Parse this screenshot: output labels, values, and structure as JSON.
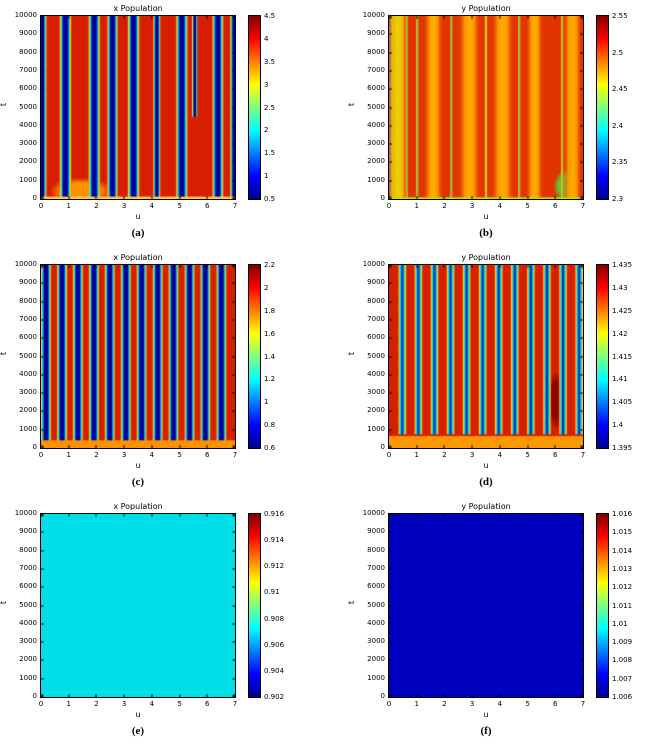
{
  "page": {
    "background": "#ffffff"
  },
  "palette": {
    "jet": {
      "stops": [
        "#00008f",
        "#0000ff",
        "#00ffff",
        "#ffff00",
        "#ff0000",
        "#800000"
      ],
      "positions": [
        0,
        0.125,
        0.375,
        0.625,
        0.875,
        1
      ]
    },
    "kinds": {
      "stripe": [
        [
          0,
          "bg"
        ],
        [
          0.12,
          "#ffdd00"
        ],
        [
          0.22,
          "#00ccff"
        ],
        [
          0.35,
          "#000099"
        ],
        [
          0.65,
          "#000099"
        ],
        [
          0.78,
          "#00ccff"
        ],
        [
          0.88,
          "#ffdd00"
        ],
        [
          1,
          "bg"
        ]
      ],
      "dstripe": [
        [
          0,
          "bg"
        ],
        [
          0.15,
          "#ffdd00"
        ],
        [
          0.3,
          "#00d8e0"
        ],
        [
          0.45,
          "#0033cc"
        ],
        [
          0.55,
          "#0033cc"
        ],
        [
          0.7,
          "#00d8e0"
        ],
        [
          0.85,
          "#ffdd00"
        ],
        [
          1,
          "bg"
        ]
      ],
      "oband": [
        [
          0,
          "bg"
        ],
        [
          0.3,
          "#ff9800"
        ],
        [
          0.5,
          "#ffae00"
        ],
        [
          0.7,
          "#ff9800"
        ],
        [
          1,
          "bg"
        ]
      ],
      "yband": [
        [
          0,
          "bg"
        ],
        [
          0.3,
          "#f5b800"
        ],
        [
          0.5,
          "#e8d400"
        ],
        [
          0.7,
          "#f5b800"
        ],
        [
          1,
          "bg"
        ]
      ],
      "cline": [
        [
          0,
          "bg"
        ],
        [
          0.35,
          "#ffd000"
        ],
        [
          0.5,
          "#00c8c0"
        ],
        [
          0.65,
          "#ffd000"
        ],
        [
          1,
          "bg"
        ]
      ]
    }
  },
  "chart_data": [
    {
      "id": "a",
      "type": "heatmap",
      "title": "x Population",
      "xlabel": "u",
      "ylabel": "t",
      "caption": "(a)",
      "x_range": [
        0,
        7
      ],
      "y_range": [
        0,
        10000
      ],
      "x_ticks": [
        "0",
        "1",
        "2",
        "3",
        "4",
        "5",
        "6",
        "7"
      ],
      "y_ticks": [
        "0",
        "1000",
        "2000",
        "3000",
        "4000",
        "5000",
        "6000",
        "7000",
        "8000",
        "9000",
        "10000"
      ],
      "colorbar_ticks": [
        "4.5",
        "4",
        "3.5",
        "3",
        "2.5",
        "2",
        "1.5",
        "1",
        "0.5"
      ],
      "heatmap": {
        "bg": "#d81e00",
        "bands": [
          {
            "kind": "stripe",
            "u": 0.03,
            "w": 0.4
          },
          {
            "kind": "stripe",
            "u": 0.88,
            "w": 0.48
          },
          {
            "kind": "stripe",
            "u": 1.92,
            "w": 0.48
          },
          {
            "kind": "stripe",
            "u": 2.58,
            "w": 0.44
          },
          {
            "kind": "stripe",
            "u": 3.34,
            "w": 0.48
          },
          {
            "kind": "stripe",
            "u": 4.18,
            "w": 0.3
          },
          {
            "kind": "stripe",
            "u": 5.08,
            "w": 0.48
          },
          {
            "kind": "stripe",
            "u": 5.55,
            "w": 0.22,
            "t0": 4500
          },
          {
            "kind": "stripe",
            "u": 6.38,
            "w": 0.46
          },
          {
            "kind": "stripe",
            "u": 6.98,
            "w": 0.36
          }
        ],
        "patches": [
          {
            "cu": 1.45,
            "ct": 420,
            "ru": 1.15,
            "rt": 750,
            "color": "#ff9100"
          }
        ],
        "bottom_band": {
          "t": 130,
          "color": "#ffc84a"
        }
      }
    },
    {
      "id": "b",
      "type": "heatmap",
      "title": "y Population",
      "xlabel": "u",
      "ylabel": "t",
      "caption": "(b)",
      "x_range": [
        0,
        7
      ],
      "y_range": [
        0,
        10000
      ],
      "x_ticks": [
        "0",
        "1",
        "2",
        "3",
        "4",
        "5",
        "6",
        "7"
      ],
      "y_ticks": [
        "0",
        "1000",
        "2000",
        "3000",
        "4000",
        "5000",
        "6000",
        "7000",
        "8000",
        "9000",
        "10000"
      ],
      "colorbar_ticks": [
        "2.55",
        "2.5",
        "2.45",
        "2.4",
        "2.35",
        "2.3"
      ],
      "heatmap": {
        "bg": "#e23400",
        "bands": [
          {
            "kind": "yband",
            "u": 0.32,
            "w": 0.85
          },
          {
            "kind": "oband",
            "u": 1.6,
            "w": 0.75
          },
          {
            "kind": "oband",
            "u": 2.9,
            "w": 0.85
          },
          {
            "kind": "oband",
            "u": 4.1,
            "w": 0.85
          },
          {
            "kind": "oband",
            "u": 5.25,
            "w": 0.65
          },
          {
            "kind": "oband",
            "u": 6.62,
            "w": 0.72
          },
          {
            "kind": "cline",
            "u": 0.1,
            "w": 0.14
          },
          {
            "kind": "cline",
            "u": 0.64,
            "w": 0.12
          },
          {
            "kind": "cline",
            "u": 1.02,
            "w": 0.14
          },
          {
            "kind": "cline",
            "u": 2.25,
            "w": 0.14
          },
          {
            "kind": "cline",
            "u": 3.5,
            "w": 0.14
          },
          {
            "kind": "cline",
            "u": 4.7,
            "w": 0.14
          },
          {
            "kind": "cline",
            "u": 6.25,
            "w": 0.14
          }
        ],
        "patches": [
          {
            "cu": 6.38,
            "ct": 700,
            "ru": 0.45,
            "rt": 900,
            "color": "#5fc832"
          }
        ],
        "bottom_band": {
          "t": 90,
          "color": "#c8e000"
        }
      }
    },
    {
      "id": "c",
      "type": "heatmap",
      "title": "x Population",
      "xlabel": "u",
      "ylabel": "t",
      "caption": "(c)",
      "x_range": [
        0,
        7
      ],
      "y_range": [
        0,
        10000
      ],
      "x_ticks": [
        "0",
        "1",
        "2",
        "3",
        "4",
        "5",
        "6",
        "7"
      ],
      "y_ticks": [
        "0",
        "1000",
        "2000",
        "3000",
        "4000",
        "5000",
        "6000",
        "7000",
        "8000",
        "9000",
        "10000"
      ],
      "colorbar_ticks": [
        "2.2",
        "2",
        "1.8",
        "1.6",
        "1.4",
        "1.2",
        "1",
        "0.8",
        "0.6"
      ],
      "heatmap": {
        "bg": "#d81e00",
        "bands": [
          {
            "kind": "stripe",
            "u": 0.18,
            "w": 0.42,
            "t0": 280
          },
          {
            "kind": "stripe",
            "u": 0.76,
            "w": 0.42,
            "t0": 280
          },
          {
            "kind": "stripe",
            "u": 1.33,
            "w": 0.42,
            "t0": 280
          },
          {
            "kind": "stripe",
            "u": 1.91,
            "w": 0.42,
            "t0": 280
          },
          {
            "kind": "stripe",
            "u": 2.48,
            "w": 0.42,
            "t0": 280
          },
          {
            "kind": "stripe",
            "u": 3.06,
            "w": 0.42,
            "t0": 280
          },
          {
            "kind": "stripe",
            "u": 3.63,
            "w": 0.42,
            "t0": 280
          },
          {
            "kind": "stripe",
            "u": 4.21,
            "w": 0.42,
            "t0": 280
          },
          {
            "kind": "stripe",
            "u": 4.78,
            "w": 0.42,
            "t0": 280
          },
          {
            "kind": "stripe",
            "u": 5.36,
            "w": 0.42,
            "t0": 280
          },
          {
            "kind": "stripe",
            "u": 5.93,
            "w": 0.42,
            "t0": 280
          },
          {
            "kind": "stripe",
            "u": 6.51,
            "w": 0.42,
            "t0": 280
          }
        ],
        "patches": [],
        "bottom_band": {
          "t": 420,
          "color": "#ff9100"
        }
      }
    },
    {
      "id": "d",
      "type": "heatmap",
      "title": "y Population",
      "xlabel": "u",
      "ylabel": "t",
      "caption": "(d)",
      "x_range": [
        0,
        7
      ],
      "y_range": [
        0,
        10000
      ],
      "x_ticks": [
        "0",
        "1",
        "2",
        "3",
        "4",
        "5",
        "6",
        "7"
      ],
      "y_ticks": [
        "0",
        "1000",
        "2000",
        "3000",
        "4000",
        "5000",
        "6000",
        "7000",
        "8000",
        "9000",
        "10000"
      ],
      "colorbar_ticks": [
        "1.435",
        "1.43",
        "1.425",
        "1.42",
        "1.415",
        "1.41",
        "1.405",
        "1.4",
        "1.395"
      ],
      "heatmap": {
        "bg": "#d81e00",
        "bands": [
          {
            "kind": "dstripe",
            "u": 0.48,
            "w": 0.34,
            "t0": 750
          },
          {
            "kind": "dstripe",
            "u": 1.06,
            "w": 0.34,
            "t0": 750
          },
          {
            "kind": "dstripe",
            "u": 1.64,
            "w": 0.34,
            "t0": 750
          },
          {
            "kind": "dstripe",
            "u": 2.22,
            "w": 0.34,
            "t0": 750
          },
          {
            "kind": "dstripe",
            "u": 2.8,
            "w": 0.34,
            "t0": 750
          },
          {
            "kind": "dstripe",
            "u": 3.38,
            "w": 0.34,
            "t0": 750
          },
          {
            "kind": "dstripe",
            "u": 3.96,
            "w": 0.34,
            "t0": 750
          },
          {
            "kind": "dstripe",
            "u": 4.54,
            "w": 0.34,
            "t0": 750
          },
          {
            "kind": "dstripe",
            "u": 5.12,
            "w": 0.34,
            "t0": 750
          },
          {
            "kind": "dstripe",
            "u": 5.7,
            "w": 0.34,
            "t0": 750
          },
          {
            "kind": "dstripe",
            "u": 6.28,
            "w": 0.34,
            "t0": 750
          },
          {
            "kind": "dstripe",
            "u": 6.86,
            "w": 0.34,
            "t0": 750
          }
        ],
        "patches": [
          {
            "cu": 6.02,
            "ct": 2600,
            "ru": 0.33,
            "rt": 1600,
            "color": "#8f0000"
          }
        ],
        "bottom_band": {
          "t": 650,
          "color": "#ff9800"
        }
      }
    },
    {
      "id": "e",
      "type": "heatmap",
      "title": "x Population",
      "xlabel": "u",
      "ylabel": "t",
      "caption": "(e)",
      "x_range": [
        0,
        7
      ],
      "y_range": [
        0,
        10000
      ],
      "x_ticks": [
        "0",
        "1",
        "2",
        "3",
        "4",
        "5",
        "6",
        "7"
      ],
      "y_ticks": [
        "0",
        "1000",
        "2000",
        "3000",
        "4000",
        "5000",
        "6000",
        "7000",
        "8000",
        "9000",
        "10000"
      ],
      "colorbar_ticks": [
        "0.916",
        "0.914",
        "0.912",
        "0.91",
        "0.908",
        "0.906",
        "0.904",
        "0.902"
      ],
      "heatmap": {
        "bg": "#00dfe8",
        "bands": [],
        "patches": []
      }
    },
    {
      "id": "f",
      "type": "heatmap",
      "title": "y Population",
      "xlabel": "u",
      "ylabel": "t",
      "caption": "(f)",
      "x_range": [
        0,
        7
      ],
      "y_range": [
        0,
        10000
      ],
      "x_ticks": [
        "0",
        "1",
        "2",
        "3",
        "4",
        "5",
        "6",
        "7"
      ],
      "y_ticks": [
        "0",
        "1000",
        "2000",
        "3000",
        "4000",
        "5000",
        "6000",
        "7000",
        "8000",
        "9000",
        "10000"
      ],
      "colorbar_ticks": [
        "1.016",
        "1.015",
        "1.014",
        "1.013",
        "1.012",
        "1.011",
        "1.01",
        "1.009",
        "1.008",
        "1.007",
        "1.006"
      ],
      "heatmap": {
        "bg": "#0000bf",
        "bands": [],
        "patches": []
      }
    }
  ]
}
